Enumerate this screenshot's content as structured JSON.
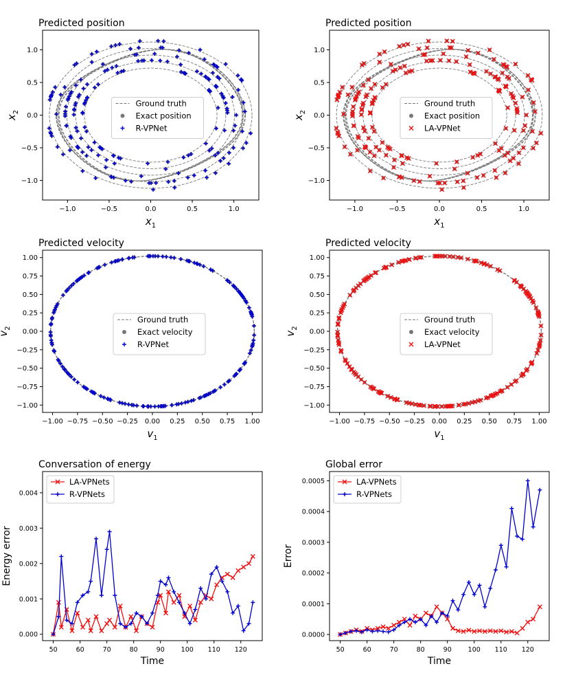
{
  "chart_data": [
    {
      "type": "scatter",
      "title": "Predicted position",
      "xlabel": "x_1",
      "ylabel": "x_2",
      "xlim": [
        -1.3,
        1.3
      ],
      "ylim": [
        -1.3,
        1.3
      ],
      "xticks": [
        -1.0,
        -0.5,
        0.0,
        0.5,
        1.0
      ],
      "xtick_labels": [
        "−1.0",
        "−0.5",
        "0.0",
        "0.5",
        "1.0"
      ],
      "yticks": [
        -1.0,
        -0.5,
        0.0,
        0.5,
        1.0
      ],
      "ytick_labels": [
        "−1.0",
        "−0.5",
        "0.0",
        "0.5",
        "1.0"
      ],
      "legend": [
        "Ground truth",
        "Exact position",
        "R-VPNet"
      ],
      "legend_loc": "center",
      "ground_truth": "five precessing ellipses, x1 range approx -1.2..1.2, x2 range approx -1.2..1.2",
      "marker_color": "#0000cc",
      "marker": "+",
      "points": 200
    },
    {
      "type": "scatter",
      "title": "Predicted position",
      "xlabel": "x_1",
      "ylabel": "x_2",
      "xlim": [
        -1.3,
        1.3
      ],
      "ylim": [
        -1.3,
        1.3
      ],
      "xticks": [
        -1.0,
        -0.5,
        0.0,
        0.5,
        1.0
      ],
      "xtick_labels": [
        "−1.0",
        "−0.5",
        "0.0",
        "0.5",
        "1.0"
      ],
      "yticks": [
        -1.0,
        -0.5,
        0.0,
        0.5,
        1.0
      ],
      "ytick_labels": [
        "−1.0",
        "−0.5",
        "0.0",
        "0.5",
        "1.0"
      ],
      "legend": [
        "Ground truth",
        "Exact position",
        "LA-VPNet"
      ],
      "legend_loc": "center",
      "marker_color": "#ee1111",
      "marker": "x",
      "points": 200
    },
    {
      "type": "scatter",
      "title": "Predicted velocity",
      "xlabel": "v_1",
      "ylabel": "v_2",
      "xlim": [
        -1.1,
        1.1
      ],
      "ylim": [
        -1.1,
        1.1
      ],
      "xticks": [
        -1.0,
        -0.75,
        -0.5,
        -0.25,
        0.0,
        0.25,
        0.5,
        0.75,
        1.0
      ],
      "xtick_labels": [
        "−1.00",
        "−0.75",
        "−0.50",
        "−0.25",
        "0.00",
        "0.25",
        "0.50",
        "0.75",
        "1.00"
      ],
      "yticks": [
        -1.0,
        -0.75,
        -0.5,
        -0.25,
        0.0,
        0.25,
        0.5,
        0.75,
        1.0
      ],
      "ytick_labels": [
        "−1.00",
        "−0.75",
        "−0.50",
        "−0.25",
        "0.00",
        "0.25",
        "0.50",
        "0.75",
        "1.00"
      ],
      "legend": [
        "Ground truth",
        "Exact velocity",
        "R-VPNet"
      ],
      "legend_loc": "center",
      "ground_truth": "unit circle, radius approx 1.02",
      "marker_color": "#0000cc",
      "marker": "+",
      "points": 200
    },
    {
      "type": "scatter",
      "title": "Predicted velocity",
      "xlabel": "v_1",
      "ylabel": "v_2",
      "xlim": [
        -1.1,
        1.1
      ],
      "ylim": [
        -1.1,
        1.1
      ],
      "xticks": [
        -1.0,
        -0.75,
        -0.5,
        -0.25,
        0.0,
        0.25,
        0.5,
        0.75,
        1.0
      ],
      "xtick_labels": [
        "−1.00",
        "−0.75",
        "−0.50",
        "−0.25",
        "0.00",
        "0.25",
        "0.50",
        "0.75",
        "1.00"
      ],
      "yticks": [
        -1.0,
        -0.75,
        -0.5,
        -0.25,
        0.0,
        0.25,
        0.5,
        0.75,
        1.0
      ],
      "ytick_labels": [
        "−1.00",
        "−0.75",
        "−0.50",
        "−0.25",
        "0.00",
        "0.25",
        "0.50",
        "0.75",
        "1.00"
      ],
      "legend": [
        "Ground truth",
        "Exact velocity",
        "LA-VPNet"
      ],
      "legend_loc": "center",
      "marker_color": "#ee1111",
      "marker": "x",
      "points": 200
    },
    {
      "type": "line",
      "title": "Conversation of energy",
      "xlabel": "Time",
      "ylabel": "Energy error",
      "xlim": [
        46,
        128
      ],
      "ylim": [
        -0.00018,
        0.0046
      ],
      "xticks": [
        50,
        60,
        70,
        80,
        90,
        100,
        110,
        120
      ],
      "xtick_labels": [
        "50",
        "60",
        "70",
        "80",
        "90",
        "100",
        "110",
        "120"
      ],
      "yticks": [
        0.0,
        0.001,
        0.002,
        0.003,
        0.004
      ],
      "ytick_labels": [
        "0.000",
        "0.001",
        "0.002",
        "0.003",
        "0.004"
      ],
      "legend_loc": "upper left",
      "x": [
        50,
        52,
        53,
        55,
        57,
        59,
        61,
        63,
        64,
        66,
        68,
        70,
        71,
        73,
        75,
        77,
        79,
        81,
        83,
        85,
        87,
        89,
        90,
        92,
        93,
        95,
        97,
        99,
        101,
        103,
        105,
        107,
        109,
        111,
        113,
        115,
        117,
        119,
        121,
        123,
        124.5
      ],
      "series": [
        {
          "name": "LA-VPNets",
          "color": "#ee1111",
          "marker": "x",
          "values": [
            0.0,
            0.0009,
            0.0002,
            0.0007,
            0.0001,
            0.0006,
            0.0002,
            0.0004,
            0.0001,
            0.0005,
            0.0001,
            0.0003,
            0.0004,
            0.0002,
            0.0008,
            0.0002,
            0.0005,
            0.0001,
            0.0005,
            0.0003,
            0.0002,
            0.0009,
            0.0011,
            0.0006,
            0.0012,
            0.0009,
            0.0011,
            0.0005,
            0.0008,
            0.0004,
            0.0009,
            0.0011,
            0.001,
            0.0014,
            0.0016,
            0.0017,
            0.0016,
            0.0018,
            0.0019,
            0.002,
            0.0022
          ]
        },
        {
          "name": "R-VPNets",
          "color": "#0000cc",
          "marker": "+",
          "values": [
            0.0,
            0.0005,
            0.0022,
            0.0004,
            0.0003,
            0.0009,
            0.0011,
            0.0012,
            0.0015,
            0.0027,
            0.0011,
            0.0024,
            0.0029,
            0.0011,
            0.0003,
            0.0002,
            0.0003,
            0.0006,
            0.0005,
            0.0003,
            0.0006,
            0.0011,
            0.0015,
            0.0014,
            0.0016,
            0.0012,
            0.0009,
            0.0006,
            0.0003,
            0.0007,
            0.0013,
            0.001,
            0.0017,
            0.0019,
            0.0015,
            0.0012,
            0.0006,
            0.0008,
            0.0001,
            0.0003,
            0.0009
          ]
        }
      ]
    },
    {
      "type": "line",
      "title": "Global error",
      "xlabel": "Time",
      "ylabel": "Error",
      "xlim": [
        46,
        128
      ],
      "ylim": [
        -2e-05,
        0.00053
      ],
      "xticks": [
        50,
        60,
        70,
        80,
        90,
        100,
        110,
        120
      ],
      "xtick_labels": [
        "50",
        "60",
        "70",
        "80",
        "90",
        "100",
        "110",
        "120"
      ],
      "yticks": [
        0.0,
        0.0001,
        0.0002,
        0.0003,
        0.0004,
        0.0005
      ],
      "ytick_labels": [
        "0.0000",
        "0.0001",
        "0.0002",
        "0.0003",
        "0.0004",
        "0.0005"
      ],
      "legend_loc": "upper left",
      "x": [
        50,
        52,
        54,
        56,
        58,
        60,
        62,
        64,
        66,
        68,
        70,
        72,
        74,
        76,
        78,
        80,
        82,
        84,
        86,
        88,
        90,
        92,
        94,
        96,
        98,
        100,
        102,
        104,
        106,
        108,
        110,
        112,
        114,
        116,
        118,
        120,
        122,
        124.5
      ],
      "series": [
        {
          "name": "LA-VPNets",
          "color": "#ee1111",
          "marker": "x",
          "values": [
            0.0,
            5e-06,
            1e-05,
            1.5e-05,
            1e-05,
            2e-05,
            1.5e-05,
            2e-05,
            2.5e-05,
            2e-05,
            3e-05,
            4e-05,
            5e-05,
            3e-05,
            6e-05,
            5e-05,
            7e-05,
            6e-05,
            9e-05,
            7e-05,
            5e-05,
            2e-05,
            1.2e-05,
            1e-05,
            1.4e-05,
            1e-05,
            1.2e-05,
            1e-05,
            1.2e-05,
            1e-05,
            1.2e-05,
            8e-06,
            1e-05,
            5e-06,
            2e-05,
            4e-05,
            5e-05,
            9e-05
          ]
        },
        {
          "name": "R-VPNets",
          "color": "#0000cc",
          "marker": "+",
          "values": [
            0.0,
            5e-06,
            1e-05,
            1.2e-05,
            8e-06,
            1.5e-05,
            1e-05,
            1.2e-05,
            1e-05,
            8e-06,
            1.5e-05,
            3e-05,
            4e-05,
            5e-05,
            4e-05,
            5e-05,
            3e-05,
            6e-05,
            4e-05,
            7e-05,
            6e-05,
            0.00011,
            8e-05,
            0.00013,
            0.00017,
            0.00013,
            0.00016,
            9e-05,
            0.00015,
            0.00021,
            0.00029,
            0.00022,
            0.00041,
            0.00032,
            0.00031,
            0.0005,
            0.00035,
            0.00047
          ]
        }
      ]
    }
  ]
}
